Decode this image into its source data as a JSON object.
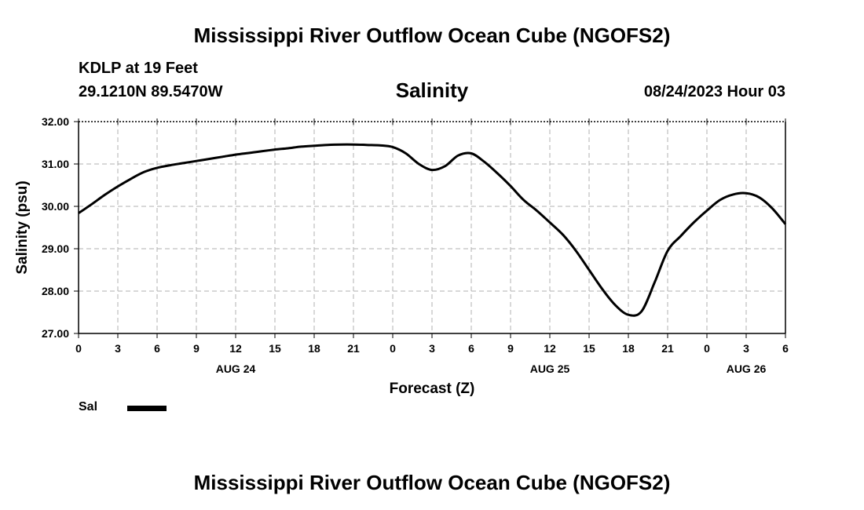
{
  "header": {
    "title": "Mississippi River Outflow Ocean Cube (NGOFS2)",
    "station": "KDLP at 19 Feet",
    "coordinates": "29.1210N  89.5470W",
    "subtitle": "Salinity",
    "datetime": "08/24/2023 Hour 03"
  },
  "footer": {
    "title": "Mississippi River Outflow Ocean Cube (NGOFS2)"
  },
  "legend": {
    "label": "Sal",
    "color": "#000000"
  },
  "chart_data": {
    "type": "line",
    "title": "Salinity",
    "xlabel": "Forecast (Z)",
    "ylabel": "Salinity (psu)",
    "xlim": [
      0,
      54
    ],
    "ylim": [
      27.0,
      32.0
    ],
    "grid": true,
    "legend_position": "bottom-left",
    "x_tick_values": [
      0,
      3,
      6,
      9,
      12,
      15,
      18,
      21,
      24,
      27,
      30,
      33,
      36,
      39,
      42,
      45,
      48,
      51,
      54
    ],
    "x_tick_labels": [
      "0",
      "3",
      "6",
      "9",
      "12",
      "15",
      "18",
      "21",
      "0",
      "3",
      "6",
      "9",
      "12",
      "15",
      "18",
      "21",
      "0",
      "3",
      "6"
    ],
    "date_labels": [
      {
        "x": 12,
        "label": "AUG 24"
      },
      {
        "x": 36,
        "label": "AUG 25"
      },
      {
        "x": 51,
        "label": "AUG 26"
      }
    ],
    "y_tick_values": [
      27.0,
      28.0,
      29.0,
      30.0,
      31.0,
      32.0
    ],
    "y_tick_labels": [
      "27.00",
      "28.00",
      "29.00",
      "30.00",
      "31.00",
      "32.00"
    ],
    "series": [
      {
        "name": "Sal",
        "x": [
          0,
          1,
          2,
          3,
          4,
          5,
          6,
          7,
          8,
          9,
          10,
          11,
          12,
          13,
          14,
          15,
          16,
          17,
          18,
          19,
          20,
          21,
          22,
          23,
          24,
          25,
          26,
          27,
          28,
          29,
          30,
          31,
          32,
          33,
          34,
          35,
          36,
          37,
          38,
          39,
          40,
          41,
          42,
          43,
          44,
          45,
          46,
          47,
          48,
          49,
          50,
          51,
          52,
          53,
          54
        ],
        "values": [
          29.84,
          30.05,
          30.27,
          30.47,
          30.65,
          30.81,
          30.91,
          30.97,
          31.02,
          31.07,
          31.12,
          31.17,
          31.22,
          31.26,
          31.3,
          31.34,
          31.37,
          31.41,
          31.43,
          31.45,
          31.46,
          31.46,
          31.45,
          31.44,
          31.4,
          31.25,
          31.0,
          30.86,
          30.95,
          31.2,
          31.25,
          31.05,
          30.78,
          30.48,
          30.15,
          29.9,
          29.62,
          29.33,
          28.95,
          28.5,
          28.05,
          27.67,
          27.44,
          27.52,
          28.2,
          28.95,
          29.3,
          29.62,
          29.9,
          30.15,
          30.28,
          30.31,
          30.21,
          29.95,
          29.58
        ]
      }
    ]
  }
}
